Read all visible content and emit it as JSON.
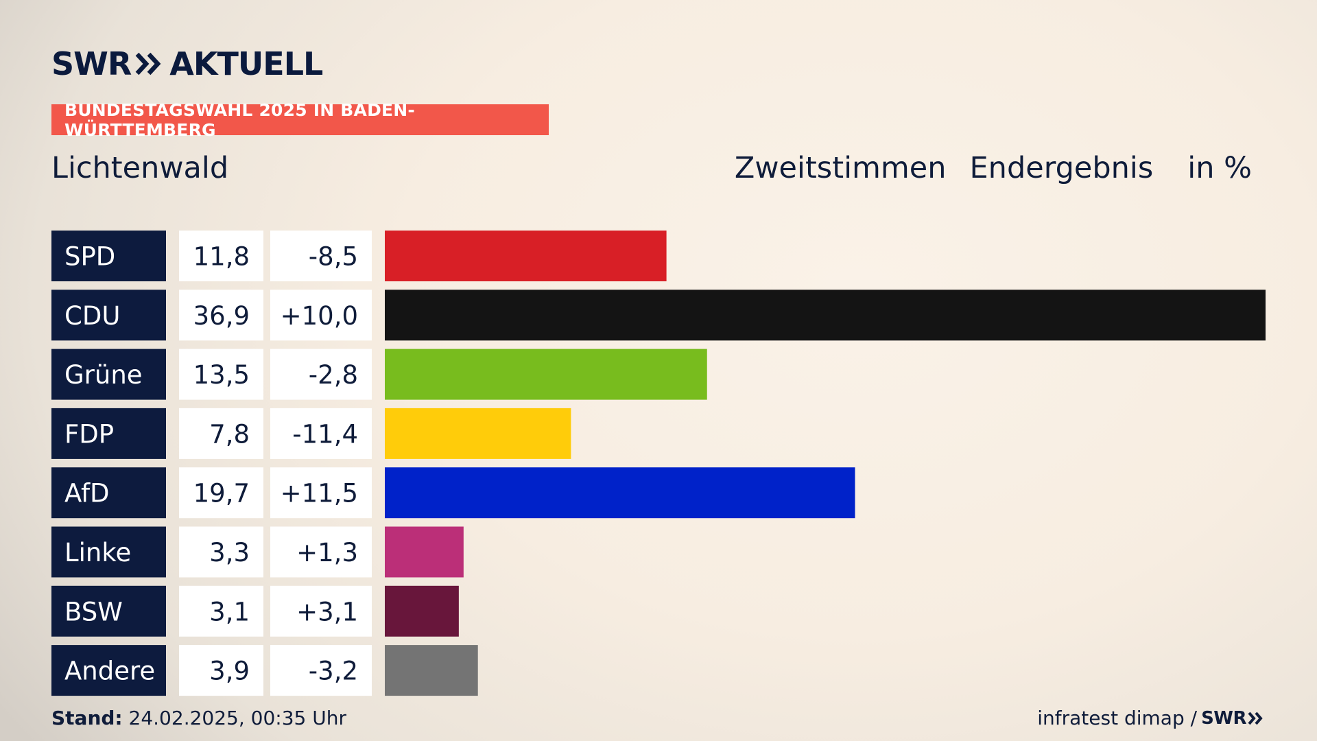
{
  "branding": {
    "logo_left": "SWR",
    "logo_right": "AKTUELL",
    "footer_logo": "SWR",
    "chevron_icon": "double-chevron-icon"
  },
  "header": {
    "kicker": "BUNDESTAGSWAHL 2025 IN BADEN-WÜRTTEMBERG",
    "region": "Lichtenwald",
    "vote_type": "Zweitstimmen",
    "status": "Endergebnis",
    "unit": "in %"
  },
  "footer": {
    "stand_label": "Stand:",
    "stand_value": "24.02.2025, 00:35 Uhr",
    "source": "infratest dimap /"
  },
  "colors": {
    "kicker_bg": "#f2574a",
    "party_label_bg": "#0d1b3e",
    "text": "#0f1c3a"
  },
  "chart_data": {
    "type": "bar",
    "orientation": "horizontal",
    "categories": [
      "SPD",
      "CDU",
      "Grüne",
      "FDP",
      "AfD",
      "Linke",
      "BSW",
      "Andere"
    ],
    "values": [
      11.8,
      36.9,
      13.5,
      7.8,
      19.7,
      3.3,
      3.1,
      3.9
    ],
    "value_labels": [
      "11,8",
      "36,9",
      "13,5",
      "7,8",
      "19,7",
      "3,3",
      "3,1",
      "3,9"
    ],
    "diff_labels": [
      "-8,5",
      "+10,0",
      "-2,8",
      "-11,4",
      "+11,5",
      "+1,3",
      "+3,1",
      "-3,2"
    ],
    "colors": [
      "#d81f26",
      "#141414",
      "#78bc1e",
      "#ffcc0a",
      "#0022c9",
      "#bb2f78",
      "#68163b",
      "#747474"
    ],
    "xlim": [
      0,
      36.9
    ],
    "grid": false
  }
}
